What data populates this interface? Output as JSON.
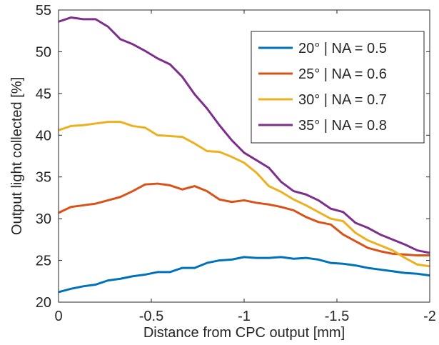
{
  "chart_data": {
    "type": "line",
    "xlabel": "Distance from CPC output [mm]",
    "ylabel": "Output light collected [%]",
    "xlim": [
      0,
      -2
    ],
    "ylim": [
      20,
      55
    ],
    "x_reversed": true,
    "grid": false,
    "legend_position": "top-right",
    "x_ticks": [
      0,
      -0.5,
      -1,
      -1.5,
      -2
    ],
    "x_tick_labels": [
      "0",
      "-0.5",
      "-1",
      "-1.5",
      "-2"
    ],
    "y_ticks": [
      20,
      25,
      30,
      35,
      40,
      45,
      50,
      55
    ],
    "y_tick_labels": [
      "20",
      "25",
      "30",
      "35",
      "40",
      "45",
      "50",
      "55"
    ],
    "x": [
      0,
      -0.0667,
      -0.1333,
      -0.2,
      -0.2667,
      -0.3333,
      -0.4,
      -0.4667,
      -0.5333,
      -0.6,
      -0.6667,
      -0.7333,
      -0.8,
      -0.8667,
      -0.9333,
      -1.0,
      -1.0667,
      -1.1333,
      -1.2,
      -1.2667,
      -1.3333,
      -1.4,
      -1.4667,
      -1.5333,
      -1.6,
      -1.6667,
      -1.7333,
      -1.8,
      -1.8667,
      -1.9333,
      -2.0
    ],
    "series": [
      {
        "name": "20° | NA = 0.5",
        "color": "#0072BD",
        "values": [
          21.2,
          21.6,
          21.9,
          22.1,
          22.6,
          22.8,
          23.1,
          23.3,
          23.6,
          23.6,
          24.1,
          24.1,
          24.7,
          25.0,
          25.1,
          25.4,
          25.3,
          25.3,
          25.4,
          25.2,
          25.3,
          25.1,
          24.7,
          24.6,
          24.4,
          24.1,
          23.9,
          23.7,
          23.5,
          23.4,
          23.2
        ]
      },
      {
        "name": "25° | NA = 0.6",
        "color": "#D95319",
        "values": [
          30.7,
          31.4,
          31.6,
          31.8,
          32.2,
          32.6,
          33.3,
          34.1,
          34.2,
          34.0,
          33.5,
          33.9,
          33.3,
          32.3,
          32.0,
          32.2,
          31.9,
          31.7,
          31.4,
          31.0,
          30.2,
          29.6,
          29.3,
          28.1,
          27.3,
          26.5,
          26.1,
          25.8,
          25.7,
          25.6,
          25.6
        ]
      },
      {
        "name": "30° | NA = 0.7",
        "color": "#EDB120",
        "values": [
          40.6,
          41.1,
          41.2,
          41.4,
          41.6,
          41.6,
          41.1,
          40.9,
          40.0,
          39.9,
          39.8,
          39.0,
          38.1,
          38.0,
          37.4,
          36.7,
          35.5,
          33.9,
          33.2,
          32.3,
          31.6,
          30.8,
          30.0,
          29.7,
          28.3,
          27.4,
          26.8,
          26.2,
          25.3,
          24.5,
          24.3
        ]
      },
      {
        "name": "35° | NA = 0.8",
        "color": "#7E2F8E",
        "values": [
          53.6,
          54.1,
          53.9,
          53.9,
          53.0,
          51.5,
          50.9,
          50.1,
          49.2,
          48.5,
          47.0,
          44.9,
          43.2,
          41.2,
          39.4,
          37.9,
          37.0,
          36.1,
          34.4,
          33.3,
          32.9,
          32.2,
          31.2,
          30.8,
          29.5,
          28.9,
          28.1,
          27.5,
          26.9,
          26.2,
          25.9
        ]
      }
    ]
  }
}
